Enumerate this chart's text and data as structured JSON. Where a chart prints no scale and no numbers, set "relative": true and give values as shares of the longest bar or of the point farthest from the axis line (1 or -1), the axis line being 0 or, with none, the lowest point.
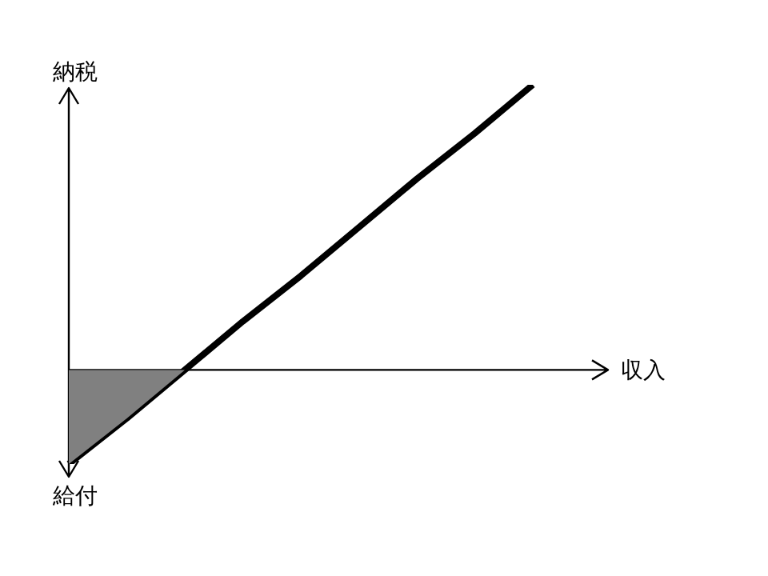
{
  "chart_data": {
    "type": "line",
    "relative": true,
    "xlabel": "収入",
    "ylabel": "納税",
    "annotations": [
      "給付"
    ],
    "legend": false,
    "marker": "none",
    "categories": [
      null,
      null,
      null,
      null,
      null,
      null,
      null,
      null,
      null
    ],
    "series": [
      {
        "type": "area",
        "color": "#808080",
        "values": [
          -0.33,
          -0.17,
          0,
          null,
          null,
          null,
          null,
          null,
          null
        ]
      },
      {
        "color": "#000000",
        "values": [
          -0.33,
          -0.17,
          0,
          0.17,
          0.33,
          0.5,
          0.67,
          0.83,
          1
        ]
      }
    ]
  }
}
